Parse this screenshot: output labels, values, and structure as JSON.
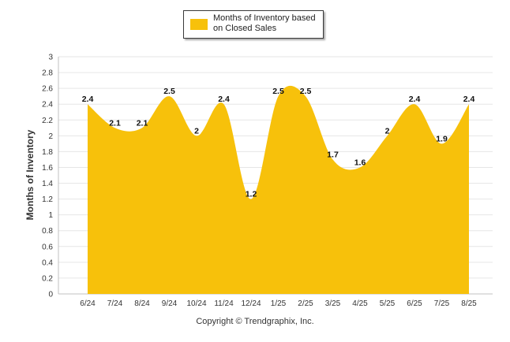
{
  "colors": {
    "area": "#f7c10b",
    "grid": "#e6e6e6",
    "axis": "#c0c0c0",
    "text": "#333333"
  },
  "chart_data": {
    "type": "area",
    "title": "",
    "xlabel": "",
    "ylabel": "Months of Inventory",
    "ylim": [
      0,
      3
    ],
    "yticks": [
      "0",
      "0.2",
      "0.4",
      "0.6",
      "0.8",
      "1",
      "1.2",
      "1.4",
      "1.6",
      "1.8",
      "2",
      "2.2",
      "2.4",
      "2.6",
      "2.8",
      "3"
    ],
    "grid": true,
    "legend_position": "top-center",
    "categories": [
      "6/24",
      "7/24",
      "8/24",
      "9/24",
      "10/24",
      "11/24",
      "12/24",
      "1/25",
      "2/25",
      "3/25",
      "4/25",
      "5/25",
      "6/25",
      "7/25",
      "8/25"
    ],
    "series": [
      {
        "name": "Months of Inventory based on Closed Sales",
        "values": [
          2.4,
          2.1,
          2.1,
          2.5,
          2,
          2.4,
          1.2,
          2.5,
          2.5,
          1.7,
          1.6,
          2,
          2.4,
          1.9,
          2.4
        ]
      }
    ]
  },
  "footer": {
    "copyright": "Copyright © Trendgraphix, Inc."
  }
}
